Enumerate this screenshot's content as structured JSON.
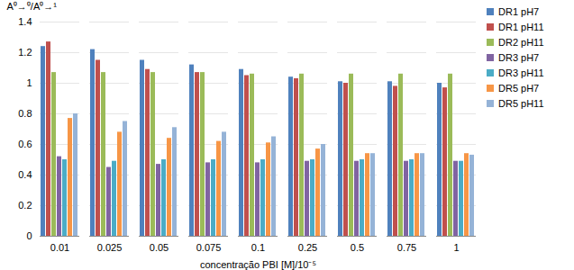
{
  "chart_data": {
    "type": "bar",
    "y_label": "A⁰→⁰/A⁰→¹",
    "x_label": "concentração PBI [M]/10⁻⁵",
    "categories": [
      "0.01",
      "0.025",
      "0.05",
      "0.075",
      "0.1",
      "0.25",
      "0.5",
      "0.75",
      "1"
    ],
    "series": [
      {
        "name": "DR1 pH7",
        "color": "#4f81bd",
        "values": [
          1.24,
          1.22,
          1.15,
          1.12,
          1.09,
          1.04,
          1.01,
          1.01,
          1.0
        ]
      },
      {
        "name": "DR1 pH11",
        "color": "#c0504d",
        "values": [
          1.27,
          1.15,
          1.09,
          1.07,
          1.05,
          1.03,
          1.0,
          0.98,
          0.97
        ]
      },
      {
        "name": "DR2 pH11",
        "color": "#9bbb59",
        "values": [
          1.07,
          1.07,
          1.07,
          1.07,
          1.06,
          1.06,
          1.06,
          1.06,
          1.06
        ]
      },
      {
        "name": "DR3 pH7",
        "color": "#8064a2",
        "values": [
          0.52,
          0.45,
          0.47,
          0.48,
          0.48,
          0.49,
          0.49,
          0.49,
          0.49
        ]
      },
      {
        "name": "DR3 pH11",
        "color": "#4bacc6",
        "values": [
          0.5,
          0.49,
          0.5,
          0.5,
          0.5,
          0.5,
          0.5,
          0.5,
          0.49
        ]
      },
      {
        "name": "DR5 pH7",
        "color": "#f79646",
        "values": [
          0.77,
          0.68,
          0.64,
          0.62,
          0.61,
          0.57,
          0.54,
          0.54,
          0.54
        ]
      },
      {
        "name": "DR5 pH11",
        "color": "#95b3d7",
        "values": [
          0.8,
          0.75,
          0.71,
          0.68,
          0.65,
          0.6,
          0.54,
          0.54,
          0.53
        ]
      }
    ],
    "ylim": [
      0,
      1.4
    ],
    "yticks": [
      0,
      0.2,
      0.4,
      0.6,
      0.8,
      1,
      1.2,
      1.4
    ],
    "grid": true,
    "legend": "right"
  }
}
